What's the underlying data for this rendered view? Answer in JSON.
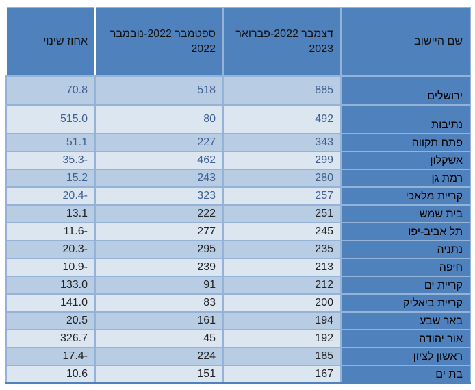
{
  "table": {
    "headers": [
      "שם היישוב",
      "דצמבר 2022-פברואר 2023",
      "ספטמבר 2022-נובמבר 2022",
      "אחוז שינוי"
    ],
    "rows": [
      [
        "ירושלים",
        "885",
        "518",
        "70.8"
      ],
      [
        "נתיבות",
        "492",
        "80",
        "515.0"
      ],
      [
        "פתח תקווה",
        "343",
        "227",
        "51.1"
      ],
      [
        "אשקלון",
        "299",
        "462",
        "35.3-"
      ],
      [
        "רמת גן",
        "280",
        "243",
        "15.2"
      ],
      [
        "קריית מלאכי",
        "257",
        "323",
        "20.4-"
      ],
      [
        "בית שמש",
        "251",
        "222",
        "13.1"
      ],
      [
        "תל אביב-יפו",
        "245",
        "277",
        "11.6-"
      ],
      [
        "נתניה",
        "235",
        "295",
        "20.3-"
      ],
      [
        "חיפה",
        "213",
        "239",
        "10.9-"
      ],
      [
        "קריית ים",
        "212",
        "91",
        "133.0"
      ],
      [
        "קריית ביאליק",
        "200",
        "83",
        "141.0"
      ],
      [
        "באר שבע",
        "194",
        "161",
        "20.5"
      ],
      [
        "אור יהודה",
        "192",
        "45",
        "326.7"
      ],
      [
        "ראשון לציון",
        "185",
        "224",
        "17.4-"
      ],
      [
        "בת ים",
        "167",
        "151",
        "10.6"
      ]
    ]
  },
  "colors": {
    "header": "#4f81bd",
    "row_odd": "#b8cce4",
    "row_even": "#dce6f1",
    "border": "#95b3d7"
  }
}
